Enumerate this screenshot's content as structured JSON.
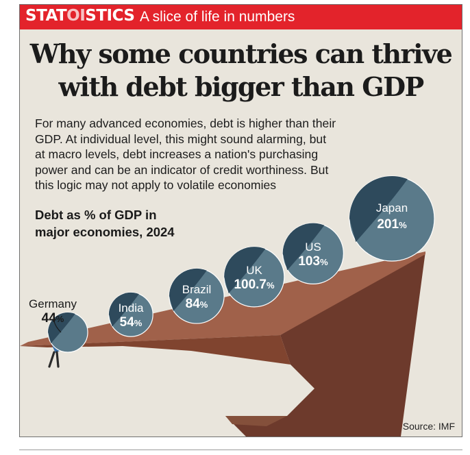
{
  "header": {
    "brand_start": "STAT",
    "brand_mid": "OI",
    "brand_end": "STICS",
    "tagline": "A slice of life in numbers"
  },
  "headline": [
    "Why some countries can thrive",
    "with debt bigger than GDP"
  ],
  "intro": [
    "For many advanced economies, debt is higher than their",
    "GDP. At individual level, this might sound alarming, but",
    "at macro levels, debt increases a nation's purchasing",
    "power and can be an indicator of credit worthiness. But",
    "this logic may not apply to volatile economies"
  ],
  "source": "Source: IMF",
  "colors": {
    "banner": "#e3232b",
    "background": "#e9e5dc",
    "cliff_top": "#a0614a",
    "cliff_face": "#6d3a2c",
    "ball_light": "#5a7a8a",
    "ball_dark": "#2e4a5c"
  },
  "chart_data": {
    "type": "bubble",
    "title": [
      "Debt as % of GDP in",
      "major economies, 2024"
    ],
    "unit": "%",
    "categories": [
      "Germany",
      "India",
      "Brazil",
      "UK",
      "US",
      "Japan"
    ],
    "values": [
      "44",
      "54",
      "84",
      "100.7",
      "103",
      "201"
    ],
    "numeric_values": [
      44,
      54,
      84,
      100.7,
      103,
      201
    ]
  }
}
